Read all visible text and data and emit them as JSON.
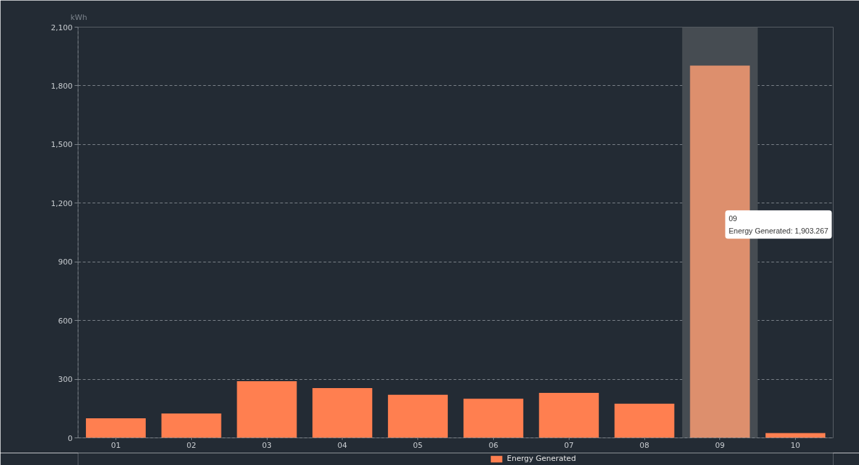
{
  "chart_data": {
    "type": "bar",
    "ylabel": "kWh",
    "categories": [
      "01",
      "02",
      "03",
      "04",
      "05",
      "06",
      "07",
      "08",
      "09",
      "10"
    ],
    "series": [
      {
        "name": "Energy Generated",
        "color": "#ff7f50",
        "colors": [
          "#ff7f50",
          "#ff7f50",
          "#ff7f50",
          "#ff7f50",
          "#ff7f50",
          "#ff7f50",
          "#ff7f50",
          "#ff7f50",
          "#dd8f6d",
          "#ff7f50"
        ],
        "values": [
          100,
          125,
          290,
          255,
          220,
          200,
          230,
          175,
          1903.267,
          25
        ]
      }
    ],
    "ylim": [
      0,
      2100
    ],
    "yticks": [
      0,
      300,
      600,
      900,
      {
        "value": 1200,
        "label": "1,200"
      },
      {
        "value": 1500,
        "label": "1,500"
      },
      {
        "value": 1800,
        "label": "1,800"
      },
      {
        "value": 2100,
        "label": "2,100"
      }
    ],
    "grid": "y",
    "legend": "bottom",
    "bands": [
      {
        "axis": "x",
        "from": "09",
        "to": "09",
        "color": "#464c52"
      }
    ],
    "annotations": [
      "09\nEnergy Generated: 1,903.267"
    ]
  }
}
